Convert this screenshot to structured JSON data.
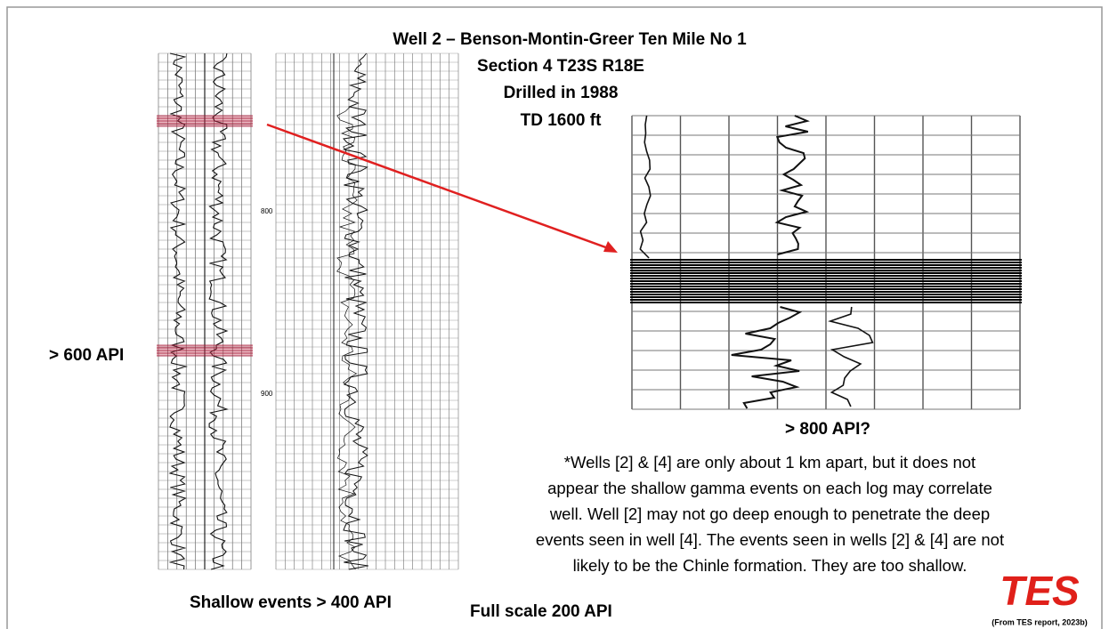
{
  "slide": {
    "title_lines": [
      "Well 2 – Benson-Montin-Greer Ten Mile No 1",
      "Section 4 T23S R18E",
      "Drilled in 1988",
      "TD 1600 ft"
    ],
    "left_label": "> 600 API",
    "log_depths": [
      "800",
      "900"
    ],
    "zoom_label": "> 800 API?",
    "note_lines": [
      "*Wells [2] & [4] are only about 1 km apart, but it does not",
      "appear the shallow gamma events on each log may correlate",
      "well.  Well [2] may not go deep enough to penetrate the deep",
      "events seen in well [4]. The events seen in wells [2] & [4] are not",
      "likely to be the Chinle formation.  They are too shallow."
    ],
    "bottom_labels": [
      "Shallow events > 400 API",
      "Full scale 200 API"
    ],
    "logo": "TES",
    "source": "(From TES report, 2023b)"
  }
}
